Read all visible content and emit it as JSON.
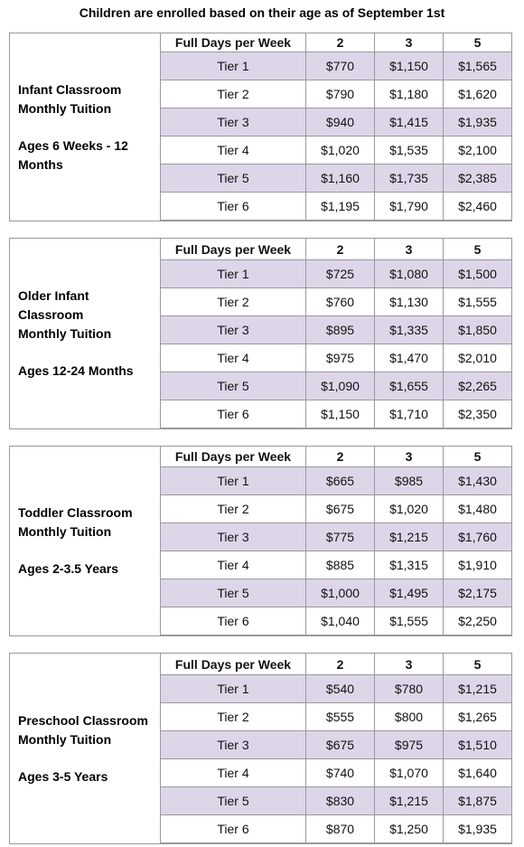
{
  "title": "Children are enrolled based on their age as of September 1st",
  "sections": [
    {
      "name_lines": [
        "Infant Classroom",
        "Monthly Tuition"
      ],
      "ages_lines": [
        "Ages 6 Weeks - 12",
        "Months"
      ],
      "header": [
        "Full Days per Week",
        "2",
        "3",
        "5"
      ],
      "rows": [
        [
          "Tier 1",
          "$770",
          "$1,150",
          "$1,565"
        ],
        [
          "Tier 2",
          "$790",
          "$1,180",
          "$1,620"
        ],
        [
          "Tier 3",
          "$940",
          "$1,415",
          "$1,935"
        ],
        [
          "Tier 4",
          "$1,020",
          "$1,535",
          "$2,100"
        ],
        [
          "Tier 5",
          "$1,160",
          "$1,735",
          "$2,385"
        ],
        [
          "Tier 6",
          "$1,195",
          "$1,790",
          "$2,460"
        ]
      ]
    },
    {
      "name_lines": [
        "Older Infant",
        "Classroom",
        "Monthly Tuition"
      ],
      "ages_lines": [
        "Ages 12-24 Months"
      ],
      "header": [
        "Full Days per Week",
        "2",
        "3",
        "5"
      ],
      "rows": [
        [
          "Tier 1",
          "$725",
          "$1,080",
          "$1,500"
        ],
        [
          "Tier 2",
          "$760",
          "$1,130",
          "$1,555"
        ],
        [
          "Tier 3",
          "$895",
          "$1,335",
          "$1,850"
        ],
        [
          "Tier 4",
          "$975",
          "$1,470",
          "$2,010"
        ],
        [
          "Tier 5",
          "$1,090",
          "$1,655",
          "$2,265"
        ],
        [
          "Tier 6",
          "$1,150",
          "$1,710",
          "$2,350"
        ]
      ]
    },
    {
      "name_lines": [
        "Toddler Classroom",
        "Monthly Tuition"
      ],
      "ages_lines": [
        "Ages 2-3.5 Years"
      ],
      "header": [
        "Full Days per Week",
        "2",
        "3",
        "5"
      ],
      "rows": [
        [
          "Tier 1",
          "$665",
          "$985",
          "$1,430"
        ],
        [
          "Tier 2",
          "$675",
          "$1,020",
          "$1,480"
        ],
        [
          "Tier 3",
          "$775",
          "$1,215",
          "$1,760"
        ],
        [
          "Tier 4",
          "$885",
          "$1,315",
          "$1,910"
        ],
        [
          "Tier 5",
          "$1,000",
          "$1,495",
          "$2,175"
        ],
        [
          "Tier 6",
          "$1,040",
          "$1,555",
          "$2,250"
        ]
      ]
    },
    {
      "name_lines": [
        "Preschool Classroom",
        "Monthly Tuition"
      ],
      "ages_lines": [
        "Ages 3-5 Years"
      ],
      "header": [
        "Full Days per Week",
        "2",
        "3",
        "5"
      ],
      "rows": [
        [
          "Tier 1",
          "$540",
          "$780",
          "$1,215"
        ],
        [
          "Tier 2",
          "$555",
          "$800",
          "$1,265"
        ],
        [
          "Tier 3",
          "$675",
          "$975",
          "$1,510"
        ],
        [
          "Tier 4",
          "$740",
          "$1,070",
          "$1,640"
        ],
        [
          "Tier 5",
          "$830",
          "$1,215",
          "$1,875"
        ],
        [
          "Tier 6",
          "$870",
          "$1,250",
          "$1,935"
        ]
      ]
    }
  ]
}
